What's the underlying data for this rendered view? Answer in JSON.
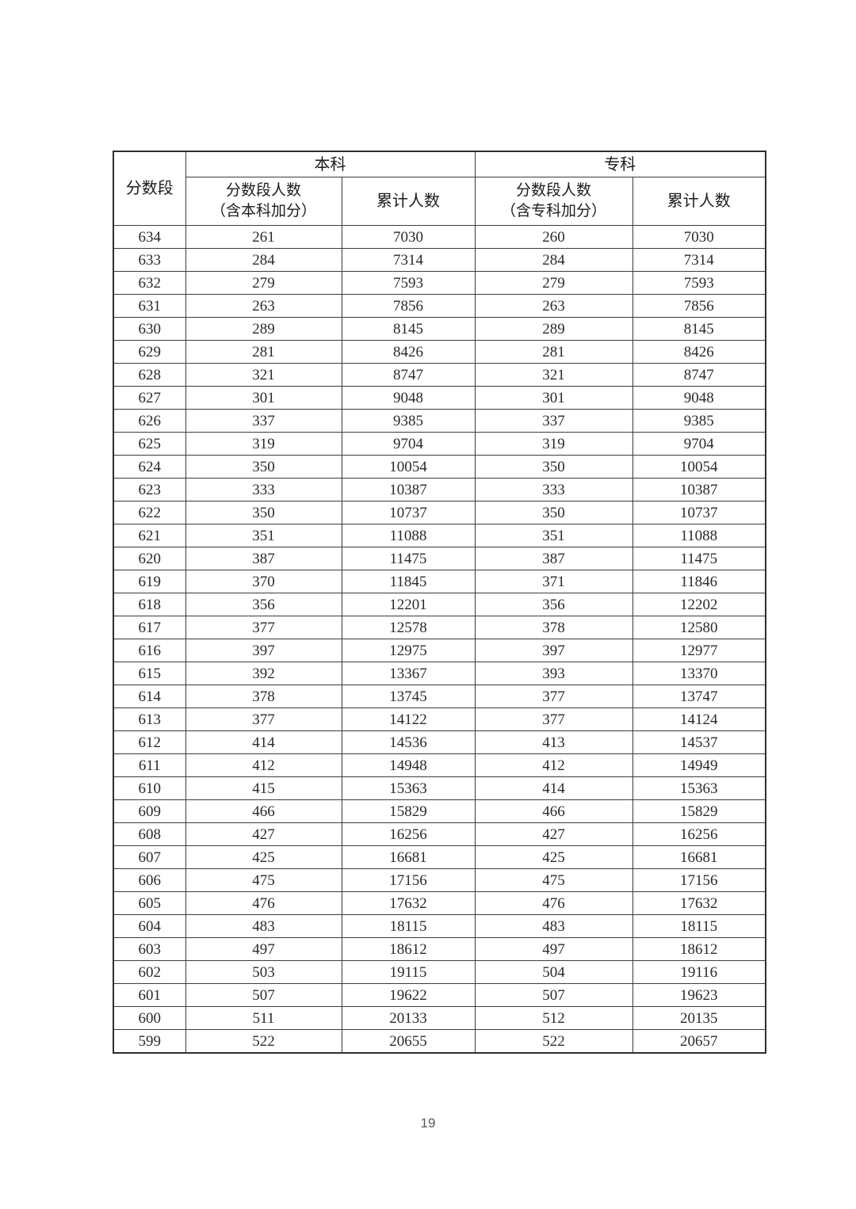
{
  "page": {
    "number": "19"
  },
  "table": {
    "headers": {
      "score_col": "分数段",
      "benke_group": "本科",
      "zhuanke_group": "专科",
      "benke_count_line1": "分数段人数",
      "benke_count_line2": "（含本科加分）",
      "benke_cumulative": "累计人数",
      "zhuanke_count_line1": "分数段人数",
      "zhuanke_count_line2": "（含专科加分）",
      "zhuanke_cumulative": "累计人数"
    },
    "col_names": [
      "score-segment-cell",
      "benke-count-cell",
      "benke-cumulative-cell",
      "zhuanke-count-cell",
      "zhuanke-cumulative-cell"
    ],
    "rows": [
      [
        634,
        261,
        7030,
        260,
        7030
      ],
      [
        633,
        284,
        7314,
        284,
        7314
      ],
      [
        632,
        279,
        7593,
        279,
        7593
      ],
      [
        631,
        263,
        7856,
        263,
        7856
      ],
      [
        630,
        289,
        8145,
        289,
        8145
      ],
      [
        629,
        281,
        8426,
        281,
        8426
      ],
      [
        628,
        321,
        8747,
        321,
        8747
      ],
      [
        627,
        301,
        9048,
        301,
        9048
      ],
      [
        626,
        337,
        9385,
        337,
        9385
      ],
      [
        625,
        319,
        9704,
        319,
        9704
      ],
      [
        624,
        350,
        10054,
        350,
        10054
      ],
      [
        623,
        333,
        10387,
        333,
        10387
      ],
      [
        622,
        350,
        10737,
        350,
        10737
      ],
      [
        621,
        351,
        11088,
        351,
        11088
      ],
      [
        620,
        387,
        11475,
        387,
        11475
      ],
      [
        619,
        370,
        11845,
        371,
        11846
      ],
      [
        618,
        356,
        12201,
        356,
        12202
      ],
      [
        617,
        377,
        12578,
        378,
        12580
      ],
      [
        616,
        397,
        12975,
        397,
        12977
      ],
      [
        615,
        392,
        13367,
        393,
        13370
      ],
      [
        614,
        378,
        13745,
        377,
        13747
      ],
      [
        613,
        377,
        14122,
        377,
        14124
      ],
      [
        612,
        414,
        14536,
        413,
        14537
      ],
      [
        611,
        412,
        14948,
        412,
        14949
      ],
      [
        610,
        415,
        15363,
        414,
        15363
      ],
      [
        609,
        466,
        15829,
        466,
        15829
      ],
      [
        608,
        427,
        16256,
        427,
        16256
      ],
      [
        607,
        425,
        16681,
        425,
        16681
      ],
      [
        606,
        475,
        17156,
        475,
        17156
      ],
      [
        605,
        476,
        17632,
        476,
        17632
      ],
      [
        604,
        483,
        18115,
        483,
        18115
      ],
      [
        603,
        497,
        18612,
        497,
        18612
      ],
      [
        602,
        503,
        19115,
        504,
        19116
      ],
      [
        601,
        507,
        19622,
        507,
        19623
      ],
      [
        600,
        511,
        20133,
        512,
        20135
      ],
      [
        599,
        522,
        20655,
        522,
        20657
      ]
    ]
  }
}
